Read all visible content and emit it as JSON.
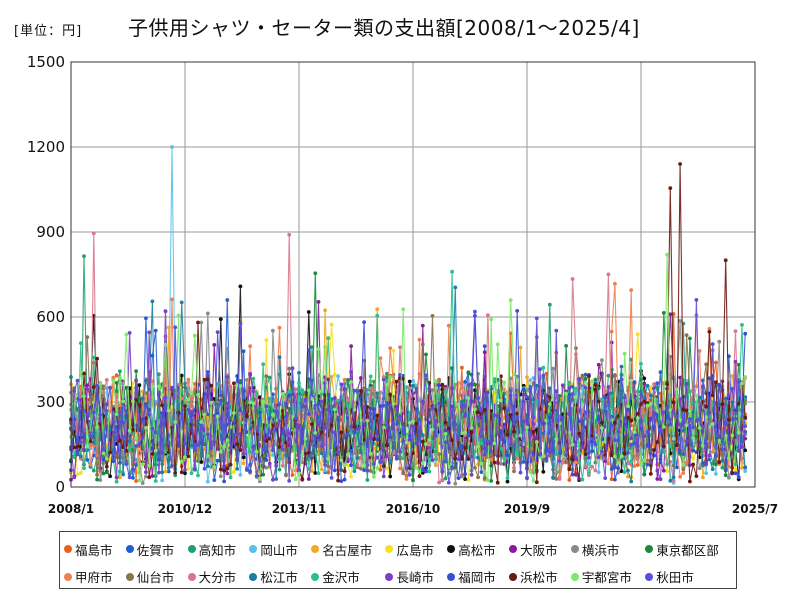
{
  "unit_label": "[単位：円]",
  "title": "子供用シャツ・セーター類の支出額[2008/1～2025/4]",
  "chart_data": {
    "type": "line",
    "title": "子供用シャツ・セーター類の支出額[2008/1～2025/4]",
    "ylabel": "[単位：円]",
    "xlabel": "",
    "ylim": [
      0,
      1500
    ],
    "yticks": [
      "0",
      "300",
      "600",
      "900",
      "1200",
      "1500"
    ],
    "xticks": [
      "2008/1",
      "2010/12",
      "2013/11",
      "2016/10",
      "2019/9",
      "2022/8",
      "2025/7"
    ],
    "x_range": [
      "2008/1",
      "2025/7"
    ],
    "x_end": "2025/4",
    "grid": true,
    "legend_position": "bottom",
    "series": [
      {
        "name": "福島市",
        "color": "#e8601c"
      },
      {
        "name": "佐賀市",
        "color": "#1f5fd6"
      },
      {
        "name": "高知市",
        "color": "#22a06b"
      },
      {
        "name": "岡山市",
        "color": "#5bc0eb"
      },
      {
        "name": "名古屋市",
        "color": "#f5a623"
      },
      {
        "name": "広島市",
        "color": "#f7e01b"
      },
      {
        "name": "高松市",
        "color": "#111111"
      },
      {
        "name": "大阪市",
        "color": "#8b1a9e"
      },
      {
        "name": "横浜市",
        "color": "#8a8a8a"
      },
      {
        "name": "東京都区部",
        "color": "#1a8a3a"
      },
      {
        "name": "甲府市",
        "color": "#f07f4f"
      },
      {
        "name": "仙台市",
        "color": "#8a7350"
      },
      {
        "name": "大分市",
        "color": "#d9778a"
      },
      {
        "name": "松江市",
        "color": "#1a7fa0"
      },
      {
        "name": "金沢市",
        "color": "#2bc08a"
      },
      {
        "name": "長崎市",
        "color": "#7a3fc4"
      },
      {
        "name": "福岡市",
        "color": "#3a4fd0"
      },
      {
        "name": "浜松市",
        "color": "#6b1a10"
      },
      {
        "name": "宇都宮市",
        "color": "#7ee86a"
      },
      {
        "name": "秋田市",
        "color": "#5a4fd8"
      }
    ],
    "annotated_peaks": [
      {
        "series": "岡山市",
        "date": "2010/8",
        "value": 1200
      },
      {
        "series": "浜松市",
        "date": "2023/8",
        "value": 1140
      },
      {
        "series": "浜松市",
        "date": "2023/5",
        "value": 1055
      },
      {
        "series": "大分市",
        "date": "2008/8",
        "value": 895
      },
      {
        "series": "大分市",
        "date": "2013/8",
        "value": 890
      },
      {
        "series": "宇都宮市",
        "date": "2023/4",
        "value": 820
      },
      {
        "series": "高知市",
        "date": "2008/5",
        "value": 815
      },
      {
        "series": "浜松市",
        "date": "2024/10",
        "value": 800
      }
    ]
  }
}
